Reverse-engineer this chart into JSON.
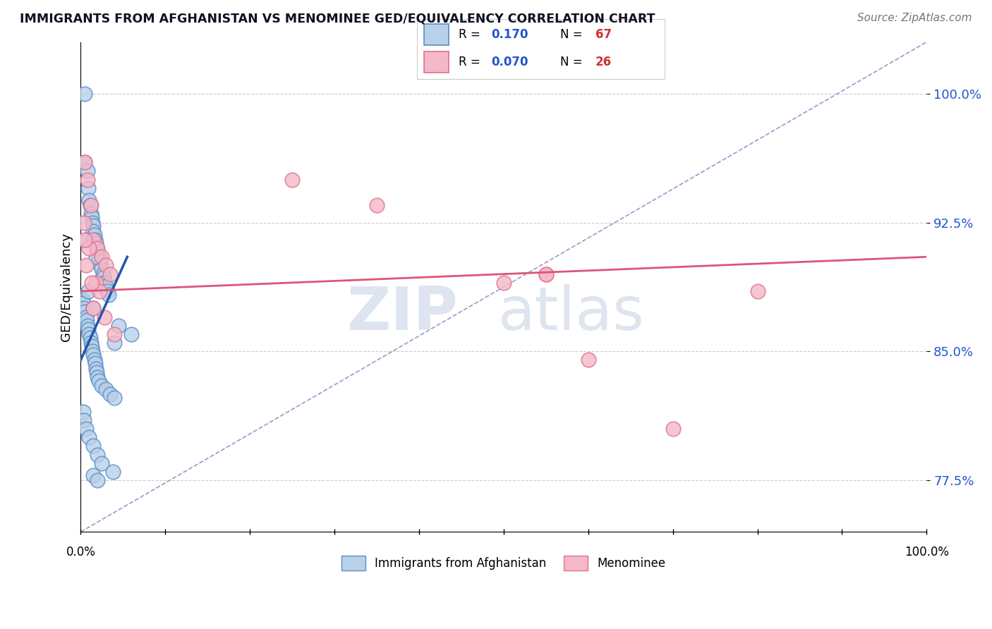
{
  "title": "IMMIGRANTS FROM AFGHANISTAN VS MENOMINEE GED/EQUIVALENCY CORRELATION CHART",
  "source_text": "Source: ZipAtlas.com",
  "ylabel": "GED/Equivalency",
  "yticks": [
    77.5,
    85.0,
    92.5,
    100.0
  ],
  "ytick_labels": [
    "77.5%",
    "85.0%",
    "92.5%",
    "100.0%"
  ],
  "xrange": [
    0.0,
    100.0
  ],
  "yrange": [
    74.5,
    103.0
  ],
  "series1_color_face": "#b8d0ea",
  "series1_color_edge": "#5b8ec4",
  "series2_color_face": "#f4b8c8",
  "series2_color_edge": "#e07090",
  "trend1_color": "#2255aa",
  "trend2_color": "#dd5577",
  "ref_line_color": "#9999cc",
  "watermark_zip_color": "#c8d4e8",
  "watermark_atlas_color": "#c0cce0",
  "blue_x": [
    0.5,
    0.5,
    0.8,
    0.9,
    1.0,
    1.1,
    1.2,
    1.3,
    1.4,
    1.5,
    1.5,
    1.6,
    1.7,
    1.8,
    1.9,
    2.0,
    2.1,
    2.2,
    2.3,
    2.5,
    2.6,
    2.7,
    2.8,
    3.0,
    3.1,
    3.3,
    0.2,
    0.3,
    0.4,
    0.5,
    0.6,
    0.7,
    0.8,
    0.9,
    1.0,
    1.1,
    1.2,
    1.3,
    1.4,
    1.5,
    1.6,
    1.7,
    1.8,
    1.9,
    2.0,
    2.1,
    2.5,
    3.0,
    3.5,
    4.0,
    0.3,
    0.4,
    0.6,
    1.0,
    1.5,
    2.0,
    2.5,
    3.8,
    1.5,
    2.0,
    4.5,
    6.0,
    4.0,
    1.8,
    0.7,
    1.5,
    0.9
  ],
  "blue_y": [
    100.0,
    96.0,
    95.5,
    94.5,
    93.8,
    93.5,
    93.0,
    92.8,
    92.5,
    92.3,
    92.0,
    91.8,
    91.5,
    91.3,
    91.0,
    90.8,
    90.5,
    90.3,
    90.0,
    89.8,
    89.5,
    89.3,
    89.0,
    88.8,
    88.5,
    88.3,
    88.0,
    87.8,
    87.5,
    87.3,
    87.0,
    86.8,
    86.5,
    86.3,
    86.0,
    85.8,
    85.5,
    85.3,
    85.0,
    84.8,
    84.5,
    84.3,
    84.0,
    83.8,
    83.5,
    83.3,
    83.0,
    82.8,
    82.5,
    82.3,
    81.5,
    81.0,
    80.5,
    80.0,
    79.5,
    79.0,
    78.5,
    78.0,
    77.8,
    77.5,
    86.5,
    86.0,
    85.5,
    90.5,
    91.5,
    87.5,
    88.5
  ],
  "pink_x": [
    0.5,
    0.8,
    1.2,
    1.5,
    2.0,
    2.5,
    3.0,
    3.5,
    0.4,
    1.0,
    1.8,
    2.2,
    0.6,
    1.3,
    25.0,
    35.0,
    55.0,
    60.0,
    70.0,
    80.0,
    55.0,
    50.0,
    0.5,
    1.5,
    2.8,
    4.0
  ],
  "pink_y": [
    96.0,
    95.0,
    93.5,
    91.5,
    91.0,
    90.5,
    90.0,
    89.5,
    92.5,
    91.0,
    89.0,
    88.5,
    90.0,
    89.0,
    95.0,
    93.5,
    89.5,
    84.5,
    80.5,
    88.5,
    89.5,
    89.0,
    91.5,
    87.5,
    87.0,
    86.0
  ],
  "trend1_x0": 0.0,
  "trend1_y0": 84.5,
  "trend1_x1": 5.5,
  "trend1_y1": 90.5,
  "trend2_x0": 0.0,
  "trend2_y0": 88.5,
  "trend2_x1": 100.0,
  "trend2_y1": 90.5,
  "ref_x0": 0.0,
  "ref_y0": 74.5,
  "ref_x1": 100.0,
  "ref_y1": 103.0,
  "xtick_positions": [
    0,
    10,
    20,
    30,
    40,
    50,
    60,
    70,
    80,
    90,
    100
  ]
}
